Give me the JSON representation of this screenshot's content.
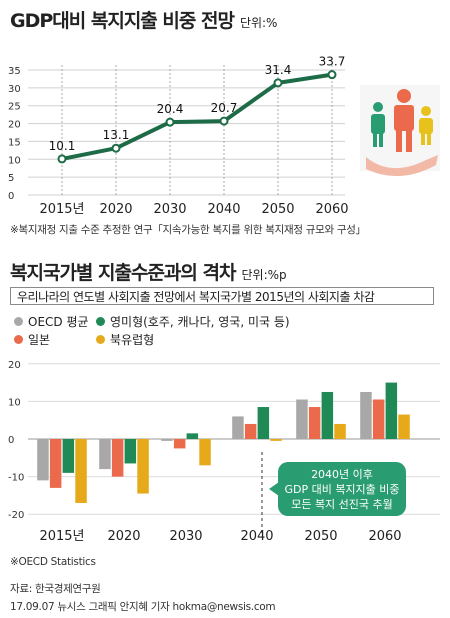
{
  "chart1": {
    "title": "GDP대비 복지지출 비중 전망",
    "unit": "단위:%",
    "note": "※복지재정 지출 수준 추정한 연구「지속가능한 복지를 위한 복지재정 규모와 구성」"
  },
  "chart2": {
    "title": "복지국가별 지출수준과의 격차",
    "unit": "단위:%p",
    "subtitle": "우리나라의 연도별 사회지출 전망에서 복지국가별 2015년의 사회지출 차감",
    "legend": [
      "OECD 평균",
      "영미형(호주, 캐나다, 영국, 미국 등)",
      "일본",
      "북유럽형"
    ],
    "callout": [
      "2040년 이후",
      "GDP 대비 복지지출 비중",
      "모든 복지 선진국 추월"
    ],
    "note": "※OECD Statistics"
  },
  "footer": {
    "source": "자료: 한국경제연구원",
    "credit": "17.09.07 뉴시스 그래픽 안지혜 기자 hokma@newsis.com"
  },
  "colors": {
    "line": "#1e6b47",
    "oecd": "#a8a8a8",
    "anglo": "#1f8a55",
    "japan": "#ec6a4c",
    "nordic": "#e6a91a",
    "callout": "#2a9c72"
  },
  "chart_data": [
    {
      "type": "line",
      "title": "GDP대비 복지지출 비중 전망",
      "x": [
        "2015년",
        "2020",
        "2030",
        "2040",
        "2050",
        "2060"
      ],
      "series": [
        {
          "values": [
            10.1,
            13.1,
            20.4,
            20.7,
            31.4,
            33.7
          ]
        }
      ],
      "data_labels": [
        "10.1",
        "13.1",
        "20.4",
        "20.7",
        "31.4",
        "33.7"
      ],
      "yticks": [
        0,
        5,
        10,
        15,
        20,
        25,
        30,
        35
      ],
      "ylim": [
        0,
        35
      ],
      "grid": true
    },
    {
      "type": "bar",
      "title": "복지국가별 지출수준과의 격차",
      "categories": [
        "2015년",
        "2020",
        "2030",
        "2040",
        "2050",
        "2060"
      ],
      "series": [
        {
          "name": "OECD 평균",
          "values": [
            -11,
            -8,
            -0.5,
            6,
            10.5,
            12.5
          ]
        },
        {
          "name": "영미형(호주, 캐나다, 영국, 미국 등)",
          "values": [
            -9,
            -6.5,
            1.5,
            8.5,
            12.5,
            15
          ]
        },
        {
          "name": "일본",
          "values": [
            -13,
            -10,
            -2.5,
            4,
            8.5,
            10.5
          ]
        },
        {
          "name": "북유럽형",
          "values": [
            -17,
            -14.5,
            -7,
            -0.5,
            4,
            6.5
          ]
        }
      ],
      "yticks": [
        20,
        10,
        0,
        -10,
        -20
      ],
      "ylim": [
        -21,
        21
      ],
      "legend": "top-left",
      "grid": true
    }
  ]
}
